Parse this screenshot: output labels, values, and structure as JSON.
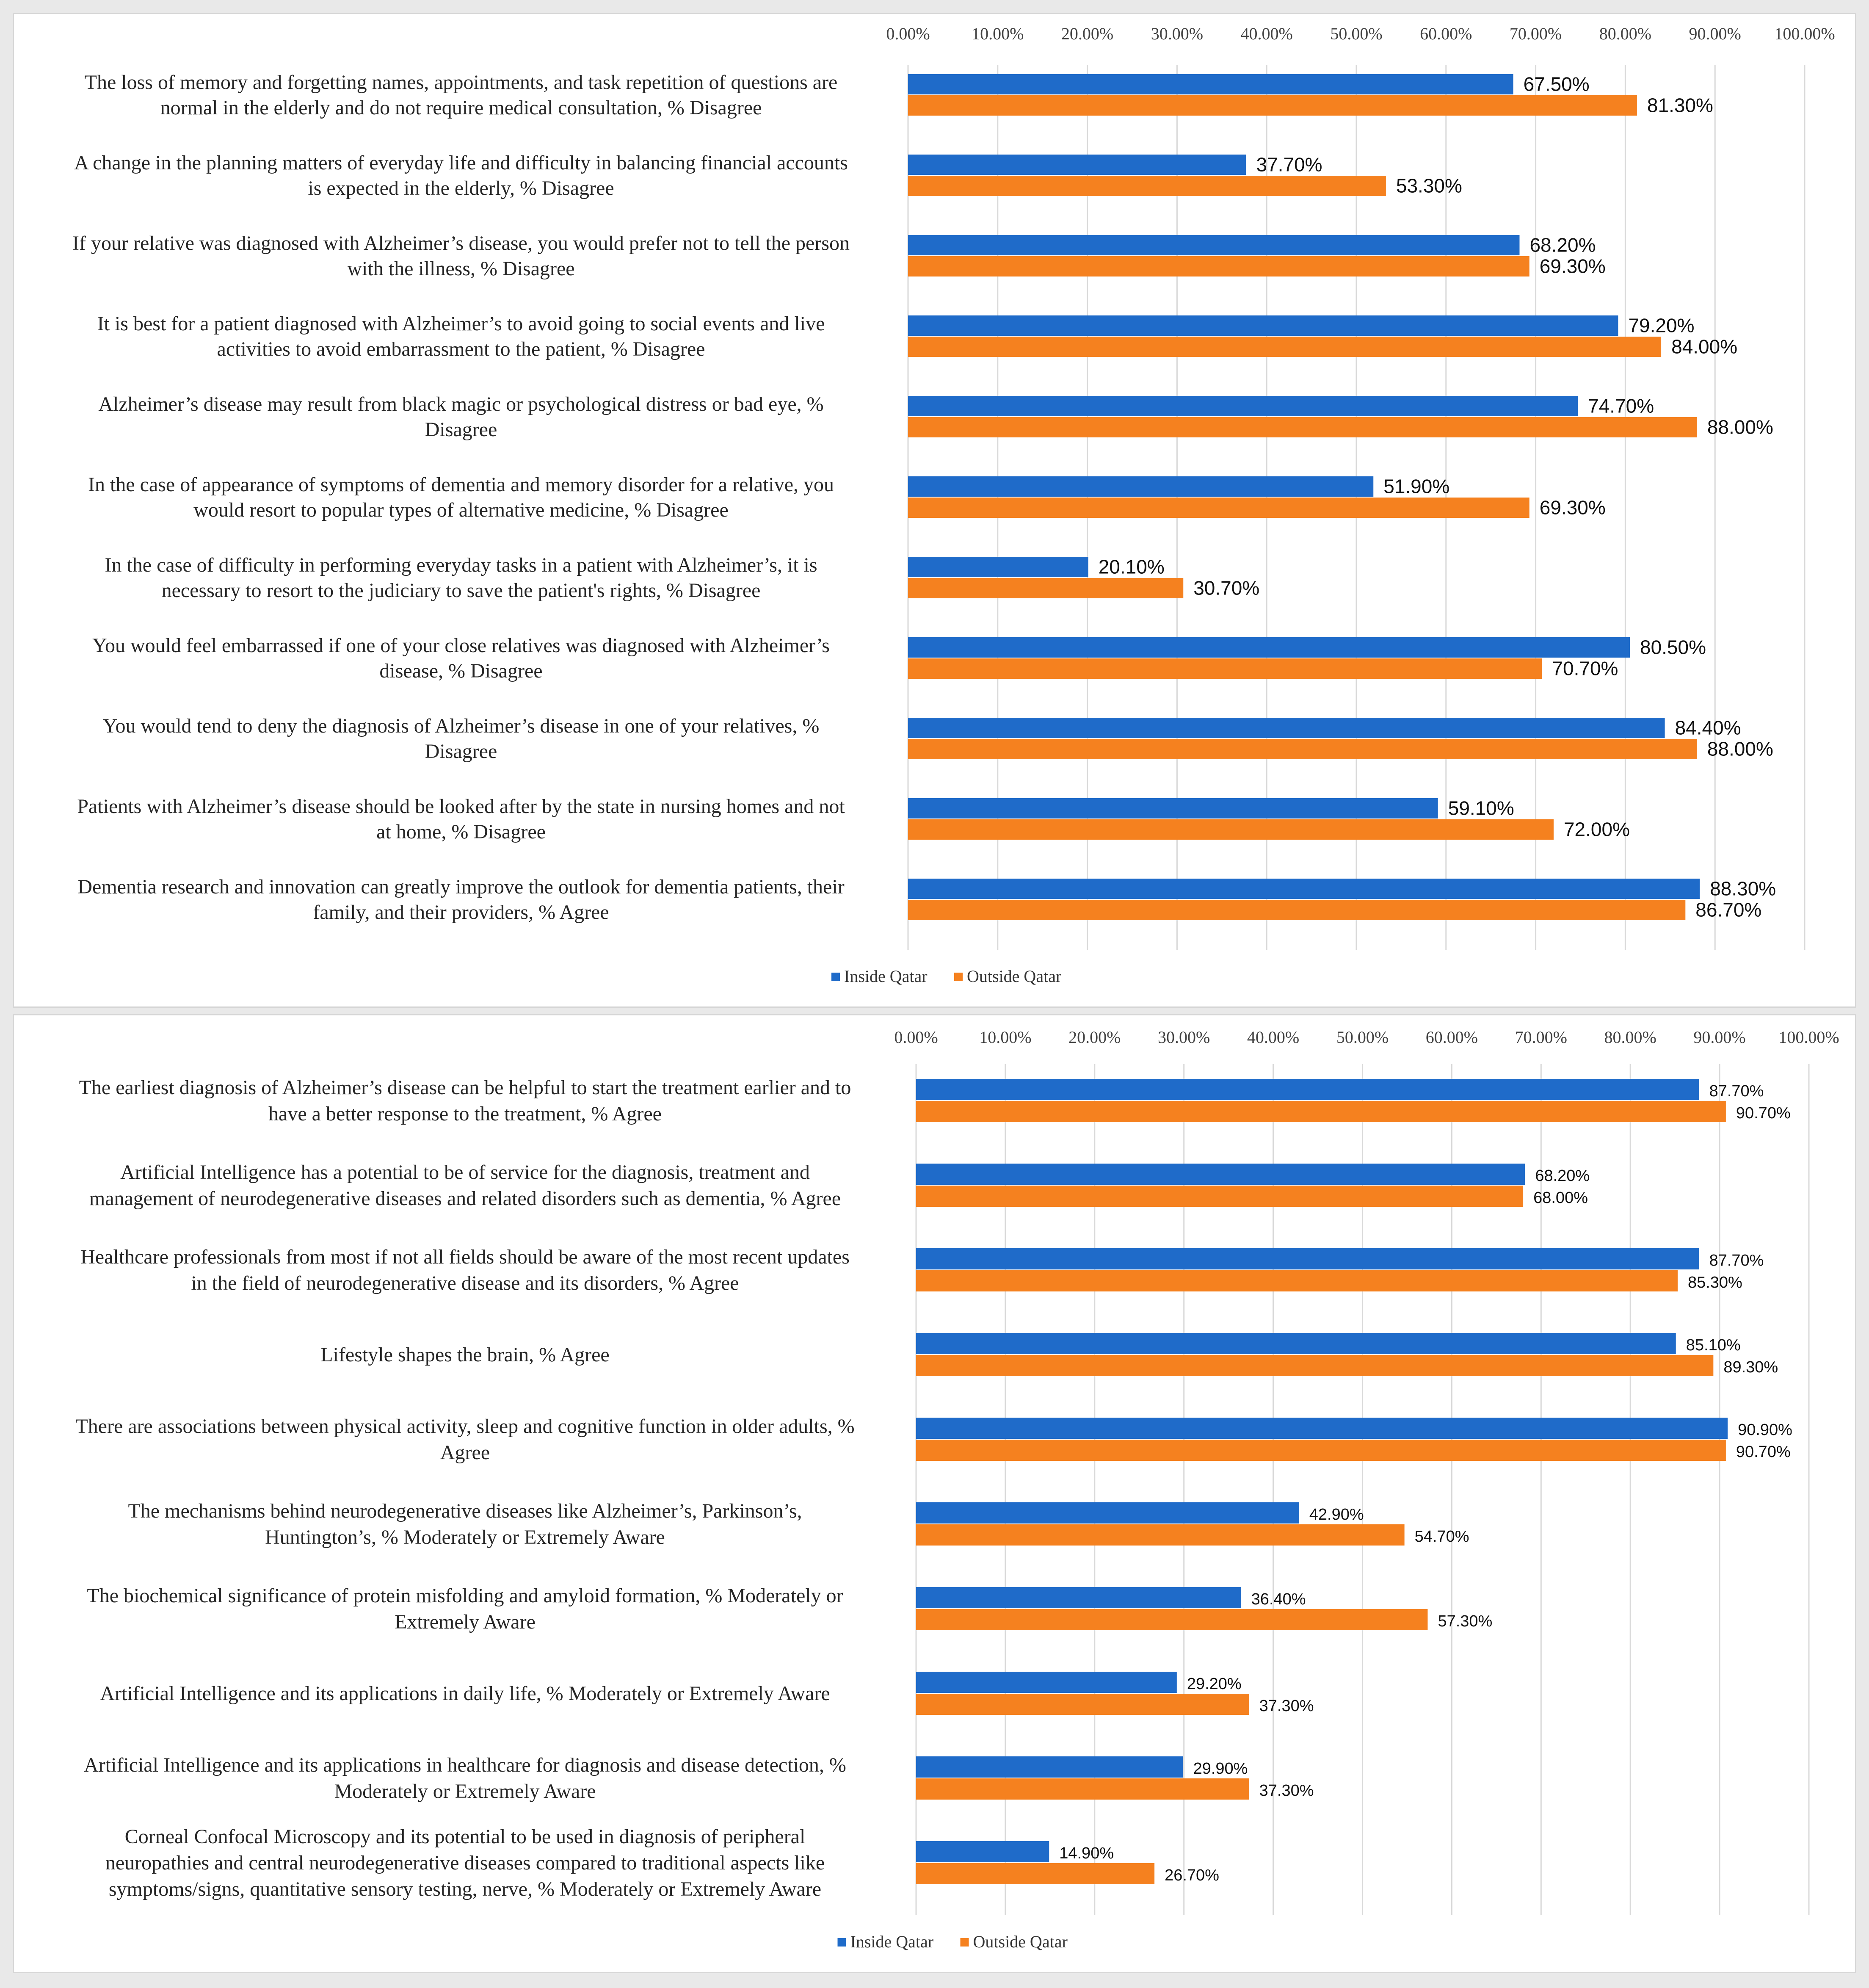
{
  "colors": {
    "inside": "#1f6bc9",
    "outside": "#f5811f",
    "grid": "#d9d9d9"
  },
  "chart_data": [
    {
      "type": "bar",
      "orientation": "horizontal",
      "xlim": [
        0,
        100
      ],
      "ticks": [
        "0.00%",
        "10.00%",
        "20.00%",
        "30.00%",
        "40.00%",
        "50.00%",
        "60.00%",
        "70.00%",
        "80.00%",
        "90.00%",
        "100.00%"
      ],
      "legend": [
        "Inside Qatar",
        "Outside Qatar"
      ],
      "legend_position": "bottom",
      "categories": [
        [
          "The loss of memory and forgetting names, appointments, and task repetition of questions are",
          "normal in the elderly and do not require medical consultation, % Disagree"
        ],
        [
          "A change in the planning matters of everyday life and difficulty in balancing financial accounts",
          "is expected in the elderly, % Disagree"
        ],
        [
          "If your relative was diagnosed with Alzheimer’s disease, you would prefer not to tell the person",
          "with the illness, % Disagree"
        ],
        [
          "It is best for a patient diagnosed with Alzheimer’s to avoid going to social events and  live",
          "activities to avoid embarrassment to the patient, % Disagree"
        ],
        [
          "Alzheimer’s disease may result from black magic or psychological distress or bad eye, %",
          "Disagree"
        ],
        [
          "In the case of appearance of symptoms of dementia and memory disorder for a relative, you",
          "would resort to popular types of alternative medicine, % Disagree"
        ],
        [
          "In the case of difficulty in performing everyday tasks in a patient with Alzheimer’s, it is",
          "necessary to resort to the judiciary to save the patient's rights, % Disagree"
        ],
        [
          "You would feel embarrassed if one of your close relatives was diagnosed with Alzheimer’s",
          "disease, % Disagree"
        ],
        [
          "You would tend to deny the diagnosis of Alzheimer’s disease in one of your relatives, %",
          "Disagree"
        ],
        [
          "Patients with Alzheimer’s disease should be looked after by the state in nursing homes and not",
          "at home, % Disagree"
        ],
        [
          "Dementia research and innovation can greatly improve the outlook for dementia patients, their",
          "family, and their providers, % Agree"
        ]
      ],
      "series": [
        {
          "name": "Inside Qatar",
          "values": [
            67.5,
            37.7,
            68.2,
            79.2,
            74.7,
            51.9,
            20.1,
            80.5,
            84.4,
            59.1,
            88.3
          ],
          "labels": [
            "67.50%",
            "37.70%",
            "68.20%",
            "79.20%",
            "74.70%",
            "51.90%",
            "20.10%",
            "80.50%",
            "84.40%",
            "59.10%",
            "88.30%"
          ]
        },
        {
          "name": "Outside Qatar",
          "values": [
            81.3,
            53.3,
            69.3,
            84.0,
            88.0,
            69.3,
            30.7,
            70.7,
            88.0,
            72.0,
            86.7
          ],
          "labels": [
            "81.30%",
            "53.30%",
            "69.30%",
            "84.00%",
            "88.00%",
            "69.30%",
            "30.70%",
            "70.70%",
            "88.00%",
            "72.00%",
            "86.70%"
          ]
        }
      ]
    },
    {
      "type": "bar",
      "orientation": "horizontal",
      "xlim": [
        0,
        100
      ],
      "ticks": [
        "0.00%",
        "10.00%",
        "20.00%",
        "30.00%",
        "40.00%",
        "50.00%",
        "60.00%",
        "70.00%",
        "80.00%",
        "90.00%",
        "100.00%"
      ],
      "legend": [
        "Inside Qatar",
        "Outside Qatar"
      ],
      "legend_position": "bottom",
      "categories": [
        [
          "The earliest diagnosis of Alzheimer’s disease can be helpful to start the treatment earlier and to",
          "have a better response to the treatment, % Agree"
        ],
        [
          "Artificial Intelligence has a potential to be of service for the diagnosis, treatment and",
          "management of neurodegenerative diseases and related disorders such as dementia, % Agree"
        ],
        [
          "Healthcare professionals from most if not all fields should be aware of the most recent updates",
          "in the field of neurodegenerative disease and its disorders, % Agree"
        ],
        [
          "Lifestyle shapes the brain, % Agree"
        ],
        [
          "There are associations between physical activity, sleep and cognitive function in older adults, %",
          "Agree"
        ],
        [
          "The mechanisms behind neurodegenerative diseases like Alzheimer’s, Parkinson’s,",
          "Huntington’s, % Moderately or Extremely Aware"
        ],
        [
          "The biochemical significance of protein misfolding and amyloid formation, % Moderately or",
          "Extremely Aware"
        ],
        [
          "Artificial Intelligence and its applications in daily life, % Moderately or Extremely Aware"
        ],
        [
          "Artificial Intelligence and its applications in healthcare for diagnosis and disease detection, %",
          "Moderately or Extremely Aware"
        ],
        [
          "Corneal Confocal Microscopy and its potential to be used in diagnosis of peripheral",
          "neuropathies and central neurodegenerative diseases compared to traditional aspects like",
          "symptoms/signs, quantitative sensory testing, nerve, % Moderately or Extremely Aware"
        ]
      ],
      "series": [
        {
          "name": "Inside Qatar",
          "values": [
            87.7,
            68.2,
            87.7,
            85.1,
            90.9,
            42.9,
            36.4,
            29.2,
            29.9,
            14.9
          ],
          "labels": [
            "87.70%",
            "68.20%",
            "87.70%",
            "85.10%",
            "90.90%",
            "42.90%",
            "36.40%",
            "29.20%",
            "29.90%",
            "14.90%"
          ]
        },
        {
          "name": "Outside Qatar",
          "values": [
            90.7,
            68.0,
            85.3,
            89.3,
            90.7,
            54.7,
            57.3,
            37.3,
            37.3,
            26.7
          ],
          "labels": [
            "90.70%",
            "68.00%",
            "85.30%",
            "89.30%",
            "90.70%",
            "54.70%",
            "57.30%",
            "37.30%",
            "37.30%",
            "26.70%"
          ]
        }
      ]
    }
  ]
}
